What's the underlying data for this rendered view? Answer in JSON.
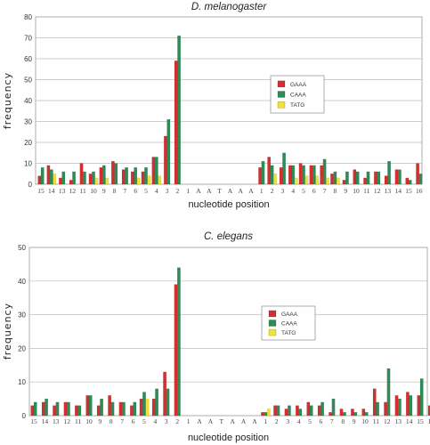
{
  "chart_data": [
    {
      "type": "bar",
      "title": "D. melanogaster",
      "xlabel": "nucleotide position",
      "ylabel": "frequency",
      "ylim": [
        0,
        80
      ],
      "yticks": [
        0,
        10,
        20,
        30,
        40,
        50,
        60,
        70,
        80
      ],
      "grid": true,
      "legend_position": "upper-right",
      "colors": {
        "GAAA": "#d32f2f",
        "CAAA": "#2e8b57",
        "TATG": "#f0e040"
      },
      "categories": [
        "15",
        "14",
        "13",
        "12",
        "11",
        "10",
        "9",
        "8",
        "7",
        "6",
        "5",
        "4",
        "3",
        "2",
        "1",
        "A",
        "A",
        "T",
        "A",
        "A",
        "A",
        "1",
        "2",
        "3",
        "4",
        "5",
        "6",
        "7",
        "8",
        "9",
        "10",
        "11",
        "12",
        "13",
        "14",
        "15",
        "16"
      ],
      "series": [
        {
          "name": "GAAA",
          "values": [
            4,
            9,
            3,
            2,
            10,
            5,
            8,
            11,
            7,
            6,
            6,
            13,
            23,
            59,
            0,
            0,
            0,
            0,
            0,
            0,
            0,
            8,
            13,
            8,
            9,
            10,
            9,
            9,
            5,
            2,
            7,
            3,
            6,
            4,
            7,
            3,
            10
          ]
        },
        {
          "name": "CAAA",
          "values": [
            8,
            7,
            6,
            6,
            6,
            6,
            9,
            10,
            8,
            8,
            8,
            13,
            31,
            71,
            0,
            0,
            0,
            0,
            0,
            0,
            0,
            11,
            9,
            15,
            9,
            9,
            9,
            12,
            6,
            6,
            6,
            6,
            6,
            11,
            7,
            2,
            5
          ]
        },
        {
          "name": "TATG",
          "values": [
            0,
            5,
            0,
            0,
            0,
            3,
            3,
            0,
            0,
            3,
            4,
            4,
            0,
            0,
            0,
            0,
            0,
            0,
            0,
            0,
            0,
            0,
            5,
            0,
            3,
            4,
            4,
            3,
            3,
            0,
            0,
            0,
            0,
            0,
            0,
            0,
            0
          ]
        }
      ]
    },
    {
      "type": "bar",
      "title": "C. elegans",
      "xlabel": "nucleotide position",
      "ylabel": "frequency",
      "ylim": [
        0,
        50
      ],
      "yticks": [
        0,
        10,
        20,
        30,
        40,
        50
      ],
      "grid": true,
      "legend_position": "center-right",
      "colors": {
        "GAAA": "#d32f2f",
        "CAAA": "#2e8b57",
        "TATG": "#f0e040"
      },
      "categories": [
        "15",
        "14",
        "13",
        "12",
        "11",
        "10",
        "9",
        "8",
        "7",
        "6",
        "5",
        "4",
        "3",
        "2",
        "1",
        "A",
        "A",
        "T",
        "A",
        "A",
        "A",
        "1",
        "2",
        "3",
        "4",
        "5",
        "6",
        "7",
        "8",
        "9",
        "10",
        "11",
        "12",
        "13",
        "14",
        "15",
        "16"
      ],
      "series": [
        {
          "name": "GAAA",
          "values": [
            3,
            4,
            3,
            4,
            3,
            6,
            3,
            6,
            4,
            3,
            5,
            5,
            13,
            39,
            0,
            0,
            0,
            0,
            0,
            0,
            0,
            1,
            3,
            2,
            3,
            4,
            3,
            1,
            2,
            2,
            2,
            8,
            4,
            6,
            7,
            6,
            3
          ]
        },
        {
          "name": "CAAA",
          "values": [
            4,
            5,
            4,
            4,
            3,
            6,
            5,
            4,
            4,
            4,
            7,
            8,
            8,
            44,
            0,
            0,
            0,
            0,
            0,
            0,
            0,
            1,
            3,
            3,
            2,
            3,
            4,
            5,
            1,
            1,
            1,
            4,
            14,
            5,
            6,
            11,
            1
          ]
        },
        {
          "name": "TATG",
          "values": [
            0,
            0,
            0,
            0,
            0,
            0,
            0,
            0,
            0,
            0,
            5,
            0,
            0,
            0,
            0,
            0,
            0,
            0,
            0,
            0,
            0,
            2,
            0,
            0,
            0,
            0,
            0,
            0,
            0,
            0,
            0,
            0,
            0,
            0,
            0,
            0,
            0
          ]
        }
      ]
    }
  ]
}
